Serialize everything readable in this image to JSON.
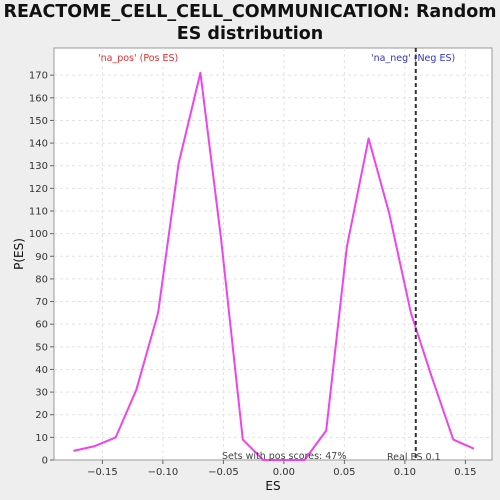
{
  "chart_data": {
    "type": "line",
    "title_line1": "REACTOME_CELL_CELL_COMMUNICATION: Random",
    "title_line2": "ES distribution",
    "xlabel": "ES",
    "ylabel": "P(ES)",
    "xlim": [
      -0.19,
      0.172
    ],
    "ylim": [
      0,
      182
    ],
    "x_ticks": [
      -0.15,
      -0.1,
      -0.05,
      0.0,
      0.05,
      0.1,
      0.15
    ],
    "x_tick_labels": [
      "−0.15",
      "−0.10",
      "−0.05",
      "0.00",
      "0.05",
      "0.10",
      "0.15"
    ],
    "y_ticks": [
      0,
      10,
      20,
      30,
      40,
      50,
      60,
      70,
      80,
      90,
      100,
      110,
      120,
      130,
      140,
      150,
      160,
      170
    ],
    "grid": true,
    "series": [
      {
        "color": "#ee44ee",
        "x": [
          -0.174,
          -0.157,
          -0.139,
          -0.122,
          -0.104,
          -0.087,
          -0.069,
          -0.052,
          -0.034,
          -0.017,
          0.0,
          0.017,
          0.035,
          0.052,
          0.07,
          0.087,
          0.105,
          0.122,
          0.14,
          0.157
        ],
        "y": [
          4,
          6,
          10,
          31,
          65,
          131,
          171,
          98,
          9,
          0,
          0,
          0,
          13,
          94,
          142,
          109,
          65,
          37,
          9,
          5
        ]
      }
    ],
    "real_es": 0.109,
    "pos_label": "'na_pos' (Pos ES)",
    "neg_label": "'na_neg' (Neg ES)",
    "pos_label_color": "#e03030",
    "neg_label_color": "#3333cc",
    "pos_scores_text": "Sets with pos scores: 47%",
    "real_es_text": "Real ES 0.1"
  }
}
